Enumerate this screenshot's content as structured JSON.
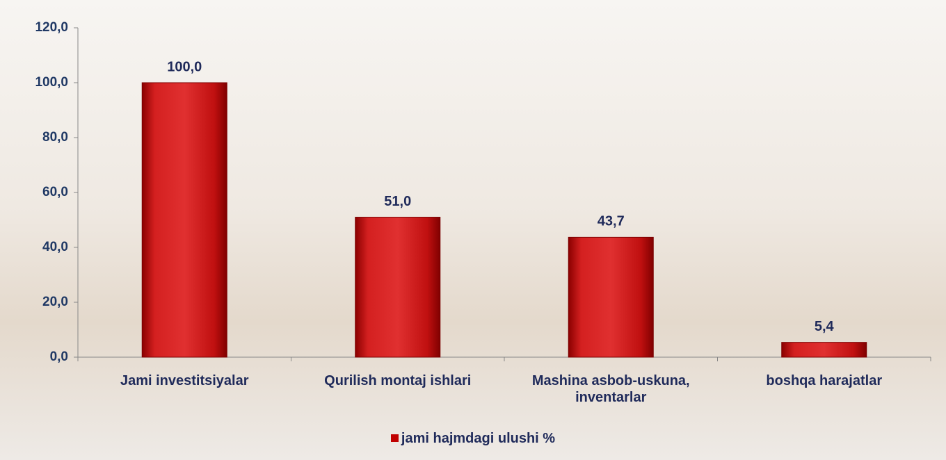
{
  "chart_data": {
    "type": "bar",
    "categories": [
      "Jami investitsiyalar",
      "Qurilish montaj ishlari",
      "Mashina asbob-uskuna, inventarlar",
      "boshqa harajatlar"
    ],
    "series": [
      {
        "name": "jami hajmdagi ulushi %",
        "color": "#c00000",
        "values": [
          100,
          51,
          43.7,
          5.4
        ],
        "value_labels": [
          "100,0",
          "51,0",
          "43,7",
          "5,4"
        ]
      }
    ],
    "ylim": [
      0,
      120
    ],
    "yticks": [
      {
        "value": 0,
        "label": "0,0"
      },
      {
        "value": 20,
        "label": "20,0"
      },
      {
        "value": 40,
        "label": "40,0"
      },
      {
        "value": 60,
        "label": "60,0"
      },
      {
        "value": 80,
        "label": "80,0"
      },
      {
        "value": 100,
        "label": "100,0"
      },
      {
        "value": 120,
        "label": "120,0"
      }
    ],
    "legend": "bottom"
  }
}
